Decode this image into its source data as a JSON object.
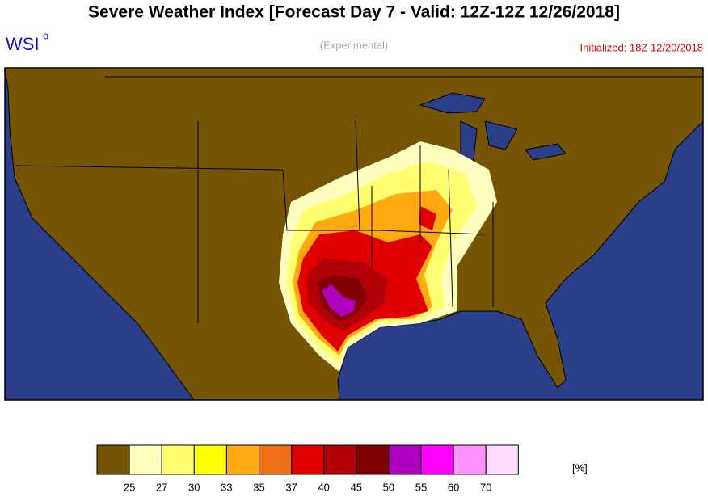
{
  "header": {
    "title": "Severe Weather Index [Forecast Day 7 - Valid: 12Z-12Z 12/26/2018]",
    "logo": "WSI",
    "logo_superscript": "o",
    "subtitle": "(Experimental)",
    "initialized": "Initialized: 18Z 12/20/2018"
  },
  "legend": {
    "unit": "[%]",
    "labels": [
      25,
      27,
      30,
      33,
      35,
      37,
      40,
      45,
      50,
      55,
      60,
      70
    ],
    "colors": [
      "#765406",
      "#ffffc0",
      "#ffff70",
      "#ffff00",
      "#ffaa10",
      "#f07018",
      "#e00000",
      "#b00008",
      "#800000",
      "#b000c0",
      "#ff00ff",
      "#ff90ff",
      "#ffdcff"
    ]
  }
}
